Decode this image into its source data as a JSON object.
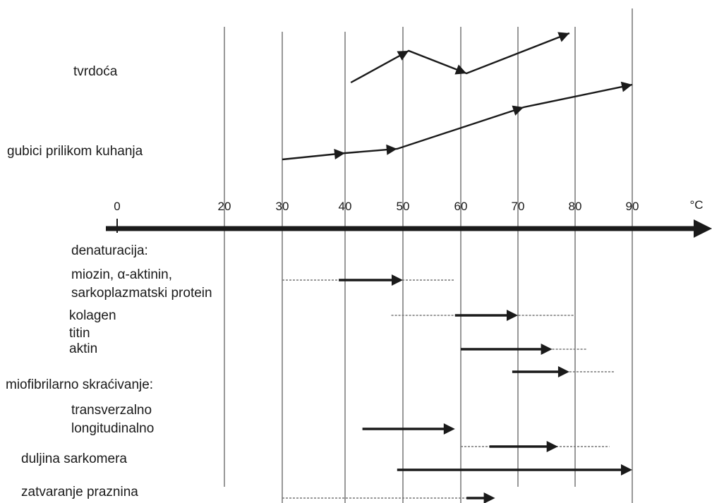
{
  "axis": {
    "tick_labels": [
      "0",
      "20",
      "30",
      "40",
      "50",
      "60",
      "70",
      "80",
      "90"
    ],
    "tick_values": [
      0,
      20,
      30,
      40,
      50,
      60,
      70,
      80,
      90
    ],
    "unit": "°C"
  },
  "upper": {
    "hardness": {
      "label": "tvrdoća",
      "points": [
        [
          41,
          117
        ],
        [
          51,
          72
        ],
        [
          61,
          104
        ],
        [
          79,
          47
        ]
      ]
    },
    "cooking_loss": {
      "label": "gubici prilikom kuhanja",
      "points": [
        [
          30,
          226
        ],
        [
          40,
          217
        ],
        [
          49,
          211
        ],
        [
          71,
          152
        ],
        [
          90,
          120
        ]
      ]
    }
  },
  "lower": {
    "denaturation_heading": "denaturacija:",
    "myosin_line1": "miozin, α-aktinin,",
    "myosin_line2": "sarkoplazmatski protein",
    "collagen": "kolagen",
    "titin": "titin",
    "actin": "aktin",
    "shortening_heading": "miofibrilarno skraćivanje:",
    "transverse": "transverzalno",
    "longitudinal": "longitudinalno",
    "sarcomere_length": "duljina sarkomera",
    "gap_closing": "zatvaranje praznina"
  },
  "ranges": [
    {
      "dash_from": 30,
      "dash_to": 59,
      "arrow_from": 39,
      "arrow_to": 50,
      "y": 397
    },
    {
      "dash_from": 48,
      "dash_to": 80,
      "arrow_from": 59,
      "arrow_to": 70,
      "y": 447
    },
    {
      "dash_from": 76,
      "dash_to": 82,
      "arrow_from": 60,
      "arrow_to": 76,
      "y": 495
    },
    {
      "dash_from": 79,
      "dash_to": 87,
      "arrow_from": 69,
      "arrow_to": 79,
      "y": 527
    },
    {
      "dash_from": null,
      "dash_to": null,
      "arrow_from": 43,
      "arrow_to": 59,
      "y": 608
    },
    {
      "dash_from": 60,
      "dash_to": 86,
      "arrow_from": 65,
      "arrow_to": 77,
      "y": 633
    },
    {
      "dash_from": null,
      "dash_to": null,
      "arrow_from": 49,
      "arrow_to": 90,
      "y": 666
    },
    {
      "dash_from": 30,
      "dash_to": 61,
      "arrow_from": 61,
      "arrow_to": 66,
      "y": 706
    }
  ],
  "colors": {
    "ink": "#1a1a1a",
    "grid": "#555555",
    "dash": "#777777"
  }
}
